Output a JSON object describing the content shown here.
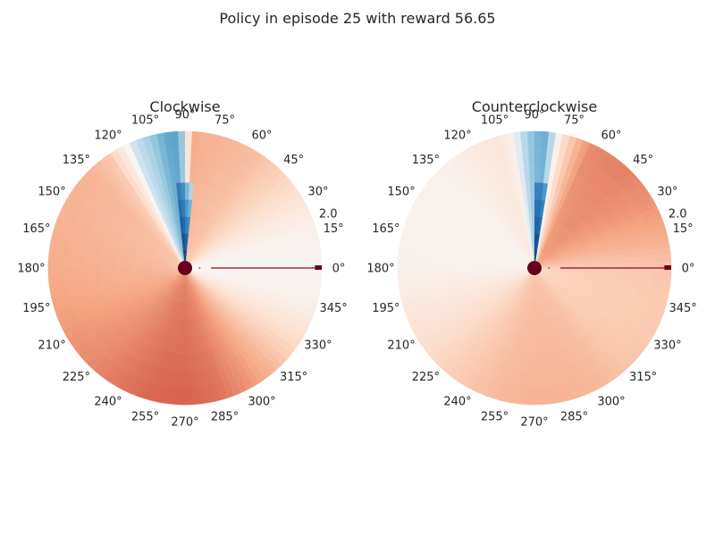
{
  "figure": {
    "title": "Policy in episode 25 with reward 56.65"
  },
  "chart_data": [
    {
      "type": "heatmap",
      "projection": "polar",
      "title": "Clockwise",
      "angle_tick_labels": [
        "0°",
        "15°",
        "30°",
        "45°",
        "60°",
        "75°",
        "90°",
        "105°",
        "120°",
        "135°",
        "150°",
        "165°",
        "180°",
        "195°",
        "210°",
        "225°",
        "240°",
        "255°",
        "270°",
        "285°",
        "300°",
        "315°",
        "330°",
        "345°"
      ],
      "radial_tick_labels": [
        "2.0"
      ],
      "radial_tick_angle_deg": 22.5,
      "rlim": [
        0,
        2.0
      ],
      "colormap": "RdBu_r",
      "value_range": [
        -1,
        1
      ],
      "grid": false,
      "angle_profile_deg": [
        0,
        15,
        30,
        45,
        60,
        75,
        83,
        87,
        90,
        95,
        100,
        105,
        112,
        118,
        125,
        135,
        150,
        165,
        180,
        195,
        210,
        225,
        240,
        255,
        270,
        285,
        300,
        315,
        330,
        345,
        360
      ],
      "angle_profile_value": [
        0.02,
        0.04,
        0.12,
        0.25,
        0.35,
        0.38,
        0.4,
        0.42,
        -0.15,
        -0.45,
        -0.35,
        -0.2,
        -0.08,
        0.1,
        0.3,
        0.38,
        0.38,
        0.4,
        0.42,
        0.45,
        0.5,
        0.55,
        0.62,
        0.68,
        0.7,
        0.64,
        0.5,
        0.32,
        0.15,
        0.05,
        0.02
      ],
      "spike_angle_deg": [
        85,
        95
      ],
      "spike_max_radius": 1.2,
      "spike_value": -1.0,
      "center_dot_value": 1.0,
      "zero_line_segments": [
        [
          0.2,
          0.2
        ],
        [
          0.38,
          0.75
        ],
        [
          0.75,
          1.95
        ]
      ],
      "zero_line_values": [
        -0.8,
        0.95,
        0.95
      ],
      "zero_line_end_value": 1.0
    },
    {
      "type": "heatmap",
      "projection": "polar",
      "title": "Counterclockwise",
      "angle_tick_labels": [
        "0°",
        "15°",
        "30°",
        "45°",
        "60°",
        "75°",
        "90°",
        "105°",
        "120°",
        "135°",
        "150°",
        "165°",
        "180°",
        "195°",
        "210°",
        "225°",
        "240°",
        "255°",
        "270°",
        "285°",
        "300°",
        "315°",
        "330°",
        "345°"
      ],
      "radial_tick_labels": [
        "2.0"
      ],
      "radial_tick_angle_deg": 22.5,
      "rlim": [
        0,
        2.0
      ],
      "colormap": "RdBu_r",
      "value_range": [
        -1,
        1
      ],
      "grid": false,
      "angle_profile_deg": [
        0,
        15,
        30,
        45,
        55,
        65,
        72,
        78,
        82,
        86,
        90,
        95,
        100,
        105,
        115,
        130,
        150,
        180,
        210,
        240,
        255,
        270,
        285,
        300,
        315,
        330,
        345,
        360
      ],
      "angle_profile_value": [
        0.3,
        0.42,
        0.52,
        0.58,
        0.58,
        0.55,
        0.35,
        0.15,
        -0.1,
        -0.4,
        -0.3,
        -0.12,
        0.05,
        0.12,
        0.1,
        0.05,
        0.04,
        0.05,
        0.15,
        0.3,
        0.36,
        0.38,
        0.38,
        0.36,
        0.3,
        0.28,
        0.28,
        0.3
      ],
      "spike_angle_deg": [
        82,
        90
      ],
      "spike_max_radius": 1.2,
      "spike_value": -1.0,
      "center_dot_value": 1.0,
      "zero_line_segments": [
        [
          0.2,
          0.2
        ],
        [
          0.38,
          0.75
        ],
        [
          0.75,
          1.95
        ]
      ],
      "zero_line_values": [
        -0.8,
        0.95,
        0.95
      ],
      "zero_line_end_value": 1.0
    }
  ]
}
